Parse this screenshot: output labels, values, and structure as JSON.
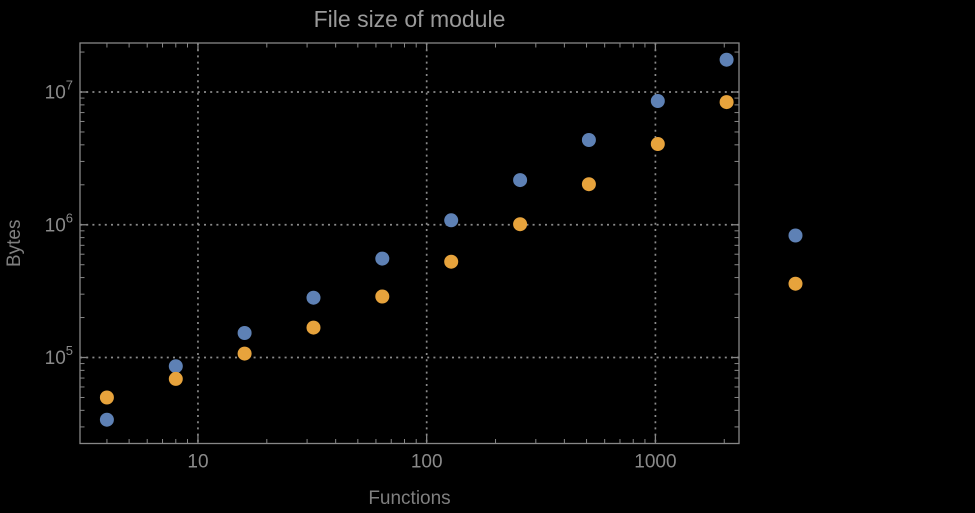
{
  "window": {
    "background": "#000000"
  },
  "colors": {
    "background": "#000000",
    "frame": "#878787",
    "grid": "#8a8a8a",
    "tick_label": "#8a8a8a",
    "axis_label": "#7f7f7f",
    "title": "#9a9a9a"
  },
  "chart_data": {
    "type": "scatter",
    "title": "File size of module",
    "xlabel": "Functions",
    "ylabel": "Bytes",
    "x_scale": "log",
    "y_scale": "log",
    "xlim": [
      3.05,
      2320
    ],
    "ylim": [
      22500,
      23400000
    ],
    "grid": "dotted",
    "legend": "none",
    "x_ticks": [
      {
        "value": 10,
        "label": "10"
      },
      {
        "value": 100,
        "label": "100"
      },
      {
        "value": 1000,
        "label": "1000"
      }
    ],
    "x_minor_ticks": [
      4,
      5,
      6,
      7,
      8,
      9,
      20,
      30,
      40,
      50,
      60,
      70,
      80,
      90,
      200,
      300,
      400,
      500,
      600,
      700,
      800,
      900,
      2000
    ],
    "y_ticks": [
      {
        "value": 100000,
        "mantissa": "10",
        "exponent": "5"
      },
      {
        "value": 1000000,
        "mantissa": "10",
        "exponent": "6"
      },
      {
        "value": 10000000,
        "mantissa": "10",
        "exponent": "7"
      }
    ],
    "y_minor_ticks": [
      30000,
      40000,
      50000,
      60000,
      70000,
      80000,
      90000,
      200000,
      300000,
      400000,
      500000,
      600000,
      700000,
      800000,
      900000,
      2000000,
      3000000,
      4000000,
      5000000,
      6000000,
      7000000,
      8000000,
      9000000,
      20000000
    ],
    "marker": {
      "shape": "circle",
      "radius": 7
    },
    "series": [
      {
        "name": "blue-series",
        "color": "#5e81b5",
        "points": [
          [
            4,
            34000
          ],
          [
            8,
            86000
          ],
          [
            16,
            153000
          ],
          [
            32,
            282000
          ],
          [
            64,
            556000
          ],
          [
            128,
            1080000
          ],
          [
            256,
            2170000
          ],
          [
            512,
            4350000
          ],
          [
            1024,
            8550000
          ],
          [
            2048,
            17500000
          ],
          [
            4096,
            830000
          ]
        ]
      },
      {
        "name": "orange-series",
        "color": "#e7a33c",
        "points": [
          [
            4,
            50000
          ],
          [
            8,
            69000
          ],
          [
            16,
            107000
          ],
          [
            32,
            168000
          ],
          [
            64,
            288000
          ],
          [
            128,
            527000
          ],
          [
            256,
            1010000
          ],
          [
            512,
            2020000
          ],
          [
            1024,
            4060000
          ],
          [
            2048,
            8400000
          ],
          [
            4096,
            360000
          ]
        ]
      }
    ]
  }
}
